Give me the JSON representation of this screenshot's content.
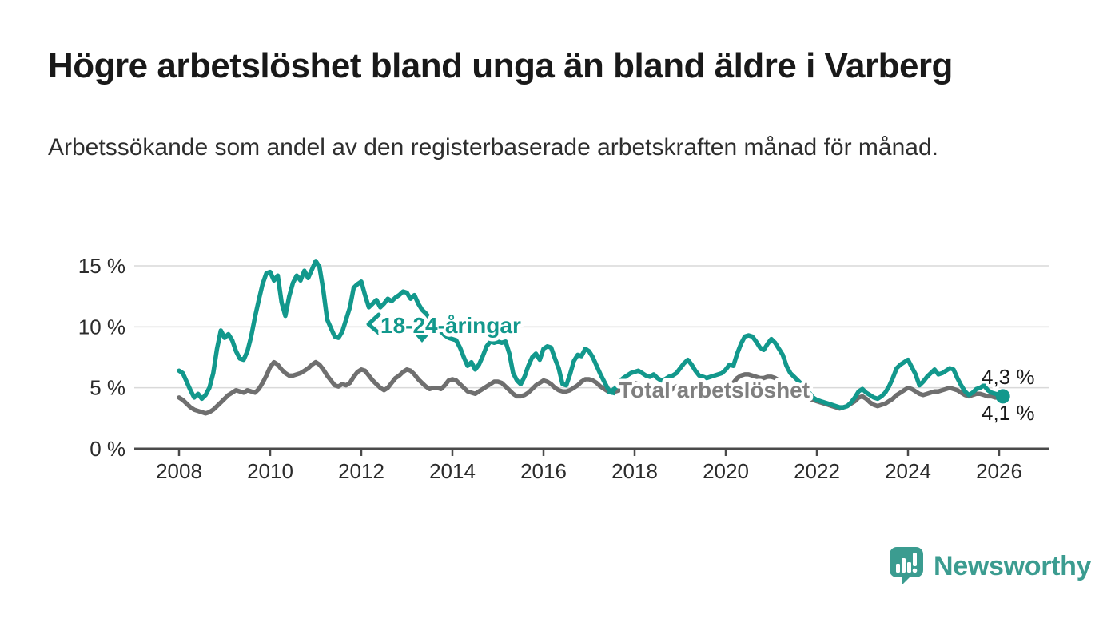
{
  "header": {
    "title": "Högre arbetslöshet bland unga än bland äldre i Varberg",
    "subtitle": "Arbetssökande som andel av den registerbaserade arbetskraften månad för månad."
  },
  "footer": {
    "brand": "Newsworthy",
    "brand_color": "#3b9c90"
  },
  "chart_data": {
    "type": "line",
    "title": "Högre arbetslöshet bland unga än bland äldre i Varberg",
    "subtitle": "Arbetssökande som andel av den registerbaserade arbetskraften månad för månad.",
    "unit": "%",
    "grid": "horizontal",
    "x": {
      "interval": "monthly",
      "start_year": 2008,
      "start_month": 1,
      "tick_years": [
        2008,
        2010,
        2012,
        2014,
        2016,
        2018,
        2020,
        2022,
        2024,
        2026
      ],
      "tick_labels": [
        "2008",
        "2010",
        "2012",
        "2014",
        "2016",
        "2018",
        "2020",
        "2022",
        "2024",
        "2026"
      ]
    },
    "y": {
      "ticks": [
        0,
        5,
        10,
        15
      ],
      "tick_labels": [
        "0 %",
        "5 %",
        "10 %",
        "15 %"
      ],
      "range": [
        0,
        16
      ]
    },
    "series": [
      {
        "name": "18-24-åringar",
        "color": "#12988c",
        "end_value_label": "4,3 %",
        "end_dot": true,
        "values": [
          6.4,
          6.2,
          5.5,
          4.8,
          4.2,
          4.5,
          4.1,
          4.4,
          5.0,
          6.2,
          8.2,
          9.7,
          9.1,
          9.4,
          8.9,
          8.0,
          7.4,
          7.3,
          8.0,
          9.2,
          10.8,
          12.2,
          13.5,
          14.4,
          14.5,
          13.8,
          14.2,
          12.0,
          10.9,
          12.5,
          13.6,
          14.2,
          13.8,
          14.6,
          14.0,
          14.7,
          15.4,
          14.9,
          13.0,
          10.6,
          9.9,
          9.2,
          9.1,
          9.6,
          10.6,
          11.6,
          13.2,
          13.5,
          13.7,
          12.6,
          11.6,
          11.9,
          12.2,
          11.6,
          11.9,
          12.3,
          12.1,
          12.4,
          12.6,
          12.9,
          12.8,
          12.3,
          12.6,
          11.9,
          11.4,
          11.1,
          10.7,
          10.3,
          9.9,
          9.6,
          9.3,
          9.1,
          9.0,
          8.9,
          8.3,
          7.5,
          6.8,
          7.1,
          6.5,
          6.9,
          7.6,
          8.4,
          8.8,
          8.7,
          8.8,
          8.7,
          8.8,
          7.8,
          6.2,
          5.6,
          5.3,
          5.9,
          6.8,
          7.5,
          7.8,
          7.3,
          8.2,
          8.4,
          8.3,
          7.4,
          6.6,
          5.3,
          5.2,
          6.1,
          7.2,
          7.7,
          7.6,
          8.2,
          8.0,
          7.5,
          6.8,
          6.1,
          5.5,
          4.9,
          4.6,
          5.0,
          5.5,
          5.8,
          6.0,
          6.2,
          6.3,
          6.4,
          6.2,
          6.0,
          5.9,
          6.1,
          5.8,
          5.6,
          5.7,
          5.9,
          6.0,
          6.2,
          6.6,
          7.0,
          7.3,
          6.9,
          6.4,
          6.0,
          5.9,
          5.8,
          5.9,
          6.0,
          6.1,
          6.2,
          6.5,
          6.9,
          6.8,
          7.8,
          8.6,
          9.2,
          9.3,
          9.2,
          8.8,
          8.3,
          8.1,
          8.6,
          9.0,
          8.7,
          8.2,
          7.7,
          6.8,
          6.2,
          5.9,
          5.6,
          5.3,
          5.0,
          4.6,
          4.2,
          4.0,
          3.9,
          3.8,
          3.7,
          3.6,
          3.5,
          3.4,
          3.4,
          3.5,
          3.8,
          4.2,
          4.7,
          4.9,
          4.6,
          4.4,
          4.2,
          4.1,
          4.3,
          4.6,
          5.1,
          5.8,
          6.6,
          6.9,
          7.1,
          7.3,
          6.7,
          6.1,
          5.2,
          5.5,
          5.9,
          6.2,
          6.5,
          6.1,
          6.2,
          6.4,
          6.6,
          6.5,
          5.8,
          5.2,
          4.7,
          4.4,
          4.6,
          4.9,
          5.0,
          5.2,
          4.8,
          4.6,
          4.5,
          4.4,
          4.3
        ]
      },
      {
        "name": "Total arbetslöshet",
        "color": "#6f6f6f",
        "end_value_label": "4,1 %",
        "end_dot": false,
        "values": [
          4.2,
          4.0,
          3.7,
          3.4,
          3.2,
          3.1,
          3.0,
          2.9,
          3.0,
          3.2,
          3.5,
          3.8,
          4.1,
          4.4,
          4.6,
          4.8,
          4.7,
          4.6,
          4.8,
          4.7,
          4.6,
          4.9,
          5.4,
          6.0,
          6.7,
          7.1,
          6.9,
          6.5,
          6.2,
          6.0,
          6.0,
          6.1,
          6.2,
          6.4,
          6.6,
          6.9,
          7.1,
          6.9,
          6.5,
          6.0,
          5.6,
          5.2,
          5.1,
          5.3,
          5.2,
          5.4,
          5.9,
          6.3,
          6.5,
          6.4,
          6.0,
          5.6,
          5.3,
          5.0,
          4.8,
          5.0,
          5.4,
          5.8,
          6.0,
          6.3,
          6.5,
          6.4,
          6.1,
          5.7,
          5.4,
          5.1,
          4.9,
          5.0,
          5.0,
          4.9,
          5.2,
          5.6,
          5.7,
          5.6,
          5.3,
          5.0,
          4.7,
          4.6,
          4.5,
          4.7,
          4.9,
          5.1,
          5.3,
          5.5,
          5.5,
          5.4,
          5.1,
          4.8,
          4.5,
          4.3,
          4.3,
          4.4,
          4.6,
          4.9,
          5.2,
          5.4,
          5.6,
          5.5,
          5.3,
          5.0,
          4.8,
          4.7,
          4.7,
          4.8,
          5.0,
          5.2,
          5.5,
          5.7,
          5.7,
          5.6,
          5.4,
          5.1,
          4.9,
          4.7,
          4.6,
          4.7,
          4.8,
          5.0,
          5.2,
          5.4,
          5.4,
          5.3,
          5.1,
          4.8,
          4.6,
          4.5,
          4.4,
          4.5,
          4.6,
          4.7,
          4.9,
          5.1,
          5.2,
          5.1,
          4.9,
          4.7,
          4.5,
          4.4,
          4.4,
          4.5,
          4.6,
          4.7,
          4.9,
          5.1,
          5.2,
          5.3,
          5.4,
          5.8,
          6.0,
          6.1,
          6.1,
          6.0,
          5.9,
          5.8,
          5.8,
          5.9,
          5.9,
          5.8,
          5.6,
          5.3,
          5.0,
          4.8,
          4.6,
          4.4,
          4.3,
          4.2,
          4.1,
          4.0,
          3.9,
          3.8,
          3.7,
          3.6,
          3.5,
          3.4,
          3.3,
          3.4,
          3.5,
          3.7,
          3.9,
          4.2,
          4.3,
          4.1,
          3.8,
          3.6,
          3.5,
          3.6,
          3.7,
          3.9,
          4.1,
          4.4,
          4.6,
          4.8,
          5.0,
          4.9,
          4.7,
          4.5,
          4.4,
          4.5,
          4.6,
          4.7,
          4.7,
          4.8,
          4.9,
          5.0,
          4.9,
          4.8,
          4.6,
          4.4,
          4.3,
          4.4,
          4.5,
          4.5,
          4.4,
          4.3,
          4.3,
          4.2,
          4.2,
          4.1
        ]
      }
    ]
  }
}
